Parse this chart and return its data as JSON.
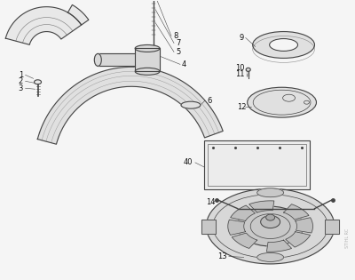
{
  "background_color": "#f5f5f5",
  "line_color": "#444444",
  "label_color": "#111111",
  "figsize": [
    4.0,
    3.15
  ],
  "dpi": 100,
  "watermark": "STIHL RC"
}
